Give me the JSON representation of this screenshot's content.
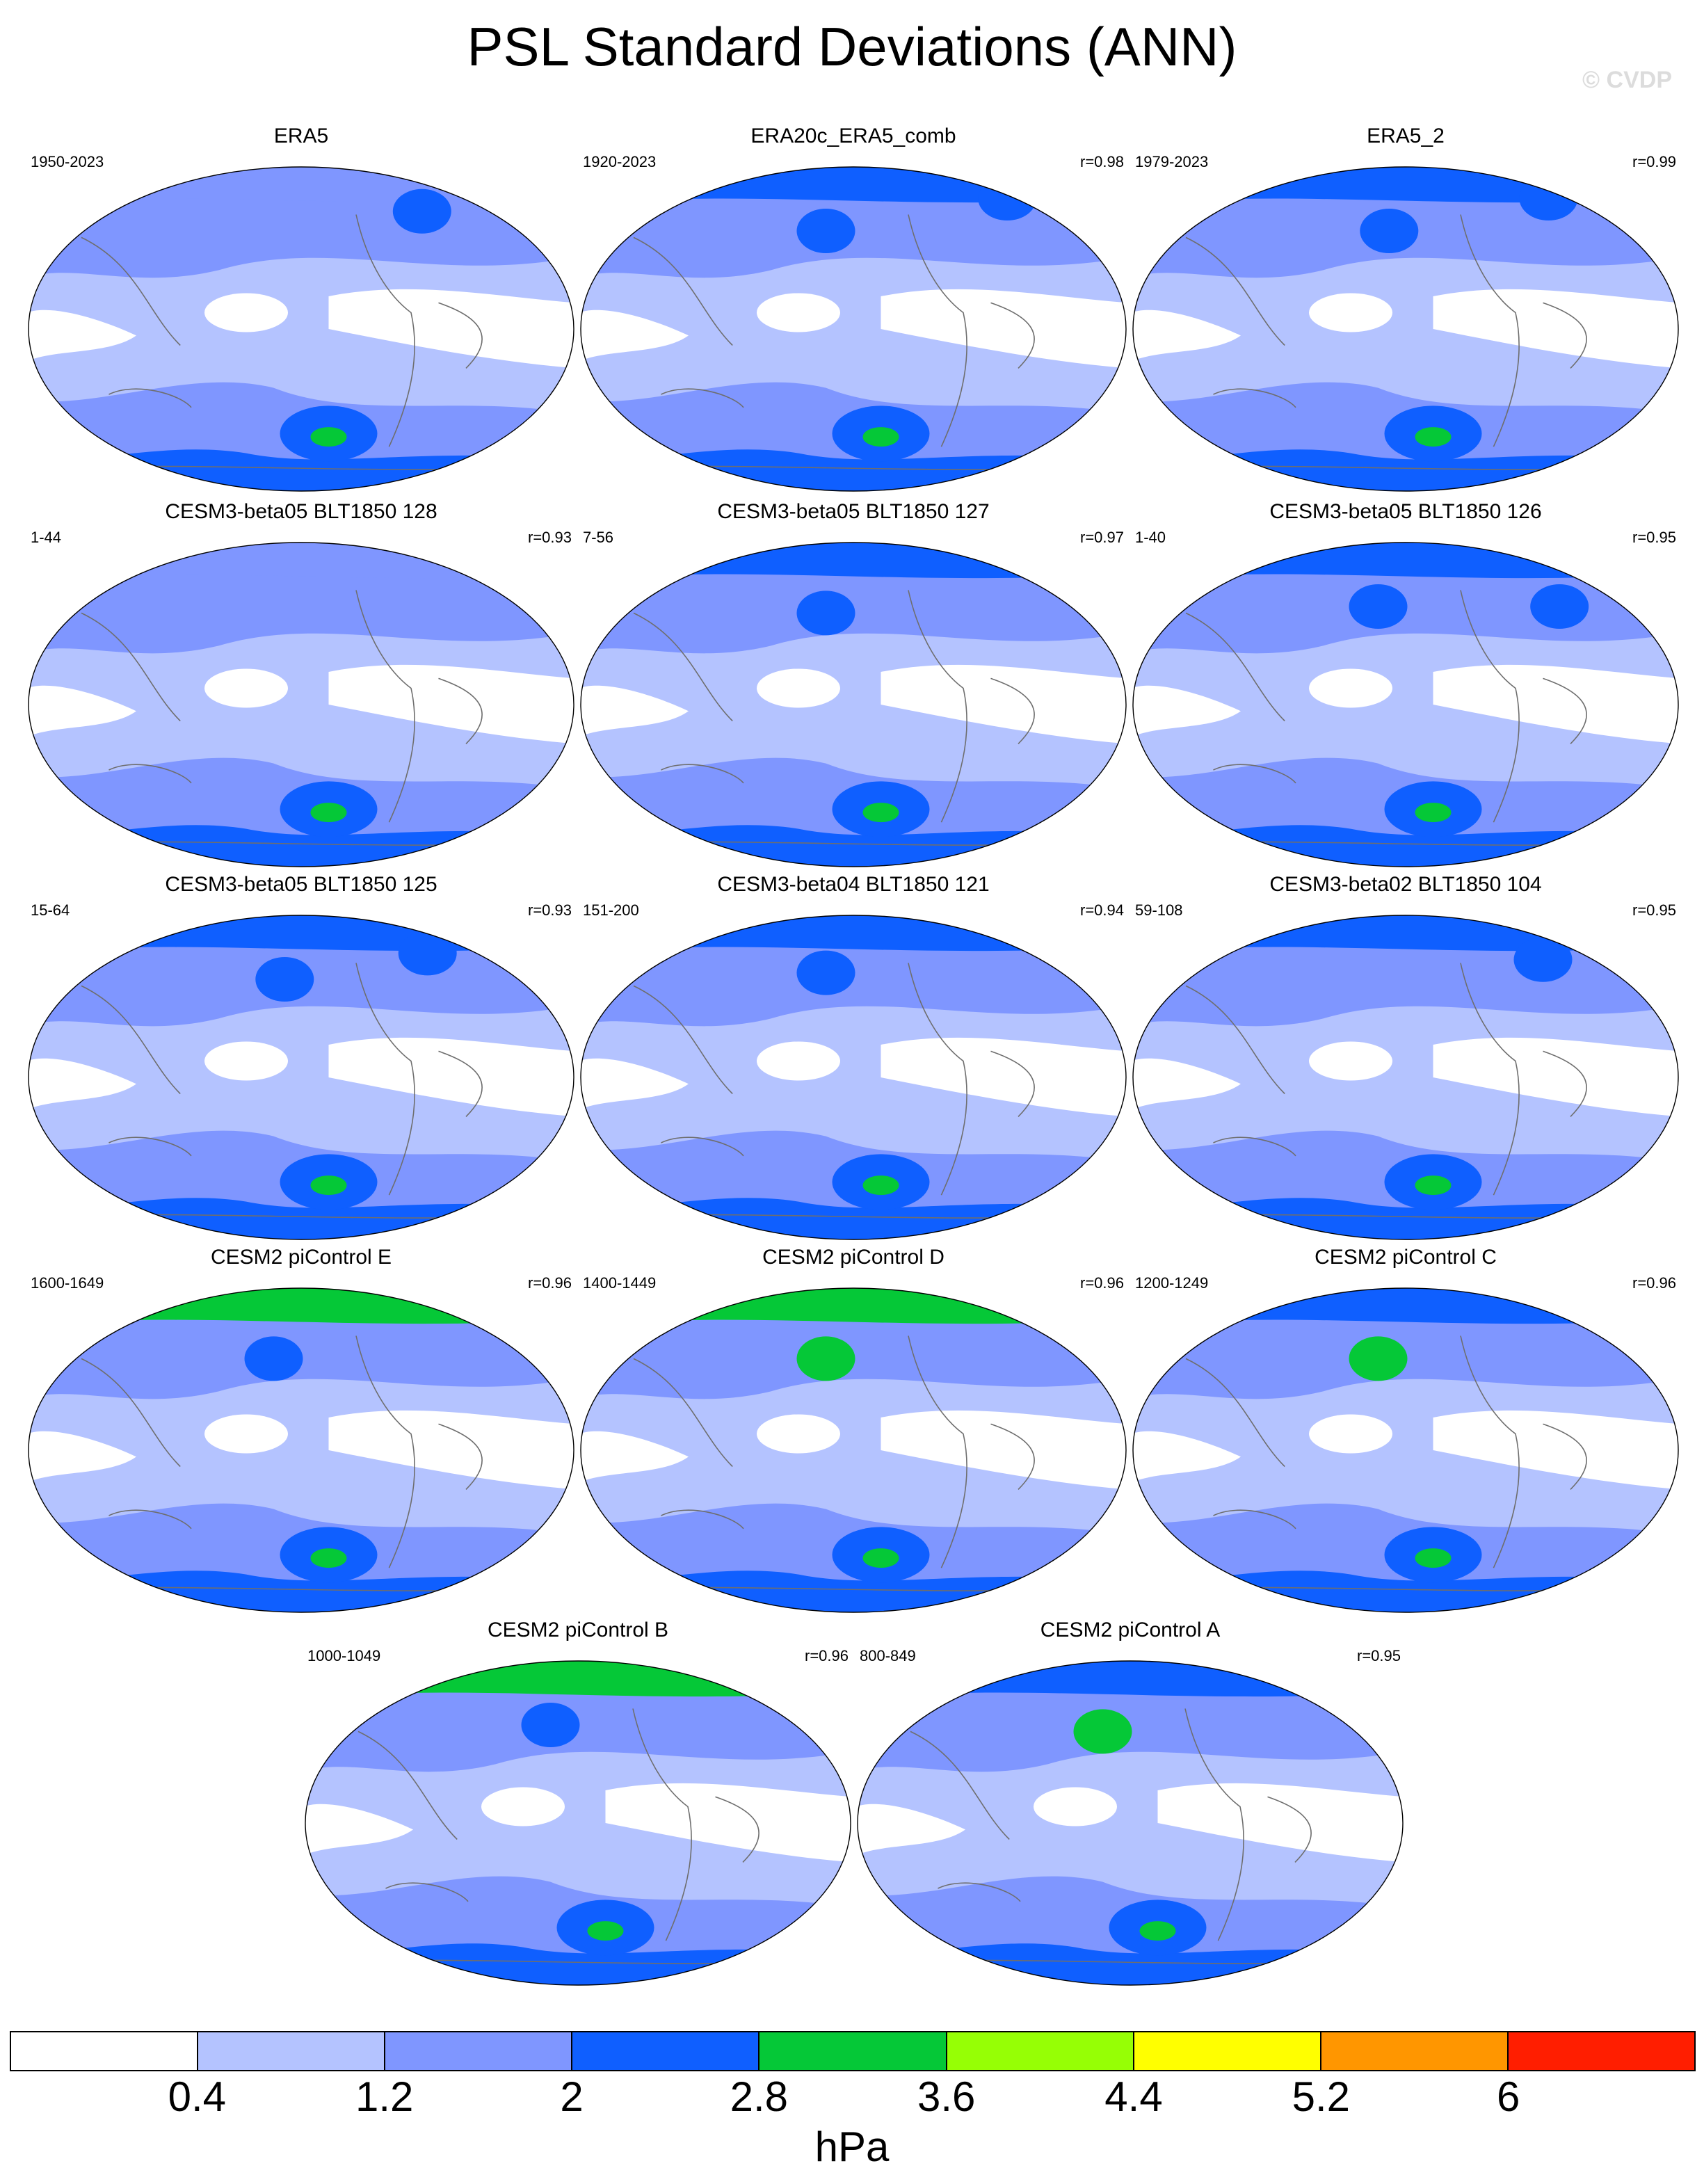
{
  "title": "PSL Standard Deviations (ANN)",
  "watermark": "© CVDP",
  "colors": {
    "levels": [
      "#ffffff",
      "#b4c3ff",
      "#7f96ff",
      "#0f5fff",
      "#05c837",
      "#96ff05",
      "#ffff00",
      "#ff9600",
      "#ff1e00"
    ]
  },
  "panels": [
    {
      "title": "ERA5",
      "years": "1950-2023",
      "r": "",
      "levels": {
        "high_n": 2,
        "south_l3": 3,
        "south_core": 4,
        "blobs": [
          [
            0.72,
            0.14,
            3
          ]
        ]
      }
    },
    {
      "title": "ERA20c_ERA5_comb",
      "years": "1920-2023",
      "r": "r=0.98",
      "levels": {
        "high_n": 3,
        "south_l3": 3,
        "south_core": 4,
        "blobs": [
          [
            0.45,
            0.2,
            3
          ],
          [
            0.78,
            0.1,
            3
          ]
        ]
      }
    },
    {
      "title": "ERA5_2",
      "years": "1979-2023",
      "r": "r=0.99",
      "levels": {
        "high_n": 3,
        "south_l3": 3,
        "south_core": 4,
        "blobs": [
          [
            0.47,
            0.2,
            3
          ],
          [
            0.76,
            0.1,
            3
          ]
        ]
      }
    },
    {
      "title": "CESM3-beta05 BLT1850 128",
      "years": "1-44",
      "r": "r=0.93",
      "levels": {
        "high_n": 2,
        "south_l3": 3,
        "south_core": 4,
        "blobs": []
      }
    },
    {
      "title": "CESM3-beta05 BLT1850 127",
      "years": "7-56",
      "r": "r=0.97",
      "levels": {
        "high_n": 3,
        "south_l3": 3,
        "south_core": 4,
        "blobs": [
          [
            0.45,
            0.22,
            3
          ]
        ]
      }
    },
    {
      "title": "CESM3-beta05 BLT1850 126",
      "years": "1-40",
      "r": "r=0.95",
      "levels": {
        "high_n": 3,
        "south_l3": 3,
        "south_core": 4,
        "blobs": [
          [
            0.45,
            0.2,
            3
          ],
          [
            0.78,
            0.2,
            3
          ]
        ]
      }
    },
    {
      "title": "CESM3-beta05 BLT1850 125",
      "years": "15-64",
      "r": "r=0.93",
      "levels": {
        "high_n": 3,
        "south_l3": 3,
        "south_core": 4,
        "blobs": [
          [
            0.47,
            0.2,
            3
          ],
          [
            0.73,
            0.12,
            3
          ]
        ]
      }
    },
    {
      "title": "CESM3-beta04 BLT1850 121",
      "years": "151-200",
      "r": "r=0.94",
      "levels": {
        "high_n": 3,
        "south_l3": 3,
        "south_core": 4,
        "blobs": [
          [
            0.45,
            0.18,
            3
          ]
        ]
      }
    },
    {
      "title": "CESM3-beta02 BLT1850 104",
      "years": "59-108",
      "r": "r=0.95",
      "levels": {
        "high_n": 3,
        "south_l3": 3,
        "south_core": 4,
        "blobs": [
          [
            0.75,
            0.14,
            3
          ]
        ]
      }
    },
    {
      "title": "CESM2 piControl E",
      "years": "1600-1649",
      "r": "r=0.96",
      "levels": {
        "high_n": 4,
        "south_l3": 3,
        "south_core": 4,
        "blobs": [
          [
            0.45,
            0.22,
            3
          ]
        ]
      }
    },
    {
      "title": "CESM2 piControl D",
      "years": "1400-1449",
      "r": "r=0.96",
      "levels": {
        "high_n": 4,
        "south_l3": 3,
        "south_core": 4,
        "blobs": [
          [
            0.45,
            0.22,
            4
          ]
        ]
      }
    },
    {
      "title": "CESM2 piControl C",
      "years": "1200-1249",
      "r": "r=0.96",
      "levels": {
        "high_n": 3,
        "south_l3": 3,
        "south_core": 4,
        "blobs": [
          [
            0.45,
            0.22,
            4
          ]
        ]
      }
    },
    {
      "title": "CESM2 piControl B",
      "years": "1000-1049",
      "r": "r=0.96",
      "levels": {
        "high_n": 4,
        "south_l3": 3,
        "south_core": 4,
        "blobs": [
          [
            0.45,
            0.2,
            3
          ]
        ]
      }
    },
    {
      "title": "CESM2 piControl A",
      "years": "800-849",
      "r": "r=0.95",
      "levels": {
        "high_n": 3,
        "south_l3": 3,
        "south_core": 4,
        "blobs": [
          [
            0.45,
            0.22,
            4
          ]
        ]
      }
    }
  ],
  "colorbar": {
    "ticks": [
      "0.4",
      "1.2",
      "2",
      "2.8",
      "3.6",
      "4.4",
      "5.2",
      "6"
    ],
    "units": "hPa"
  }
}
